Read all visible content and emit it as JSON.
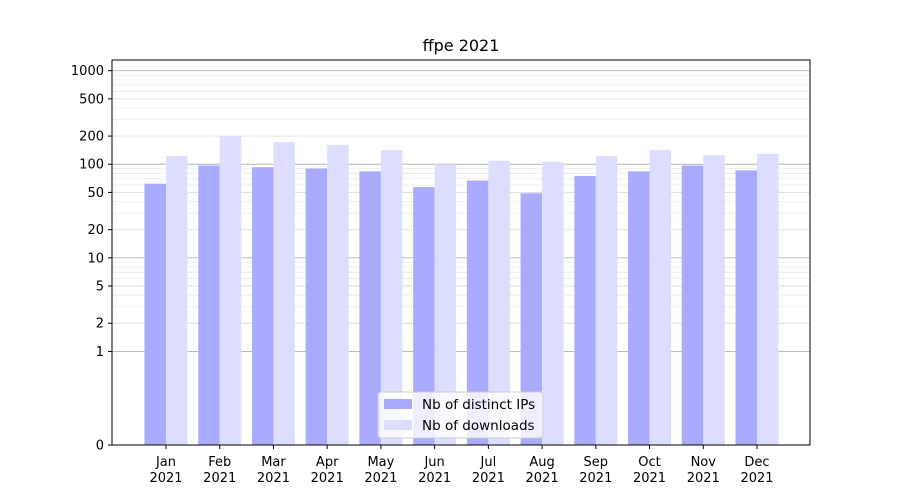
{
  "chart_data": {
    "type": "bar",
    "title": "ffpe 2021",
    "xlabel": "",
    "ylabel": "",
    "y_scale": "symlog",
    "ylim": [
      0,
      1300
    ],
    "y_ticks": [
      0,
      1,
      2,
      5,
      10,
      20,
      50,
      100,
      200,
      500,
      1000
    ],
    "categories": [
      [
        "Jan",
        "2021"
      ],
      [
        "Feb",
        "2021"
      ],
      [
        "Mar",
        "2021"
      ],
      [
        "Apr",
        "2021"
      ],
      [
        "May",
        "2021"
      ],
      [
        "Jun",
        "2021"
      ],
      [
        "Jul",
        "2021"
      ],
      [
        "Aug",
        "2021"
      ],
      [
        "Sep",
        "2021"
      ],
      [
        "Oct",
        "2021"
      ],
      [
        "Nov",
        "2021"
      ],
      [
        "Dec",
        "2021"
      ]
    ],
    "series": [
      {
        "name": "Nb of distinct IPs",
        "color": "#aaaaff",
        "values": [
          62,
          97,
          93,
          90,
          84,
          57,
          67,
          49,
          75,
          84,
          97,
          86
        ]
      },
      {
        "name": "Nb of downloads",
        "color": "#ddddff",
        "values": [
          122,
          199,
          172,
          161,
          142,
          100,
          109,
          106,
          122,
          142,
          125,
          129
        ]
      }
    ],
    "legend_position": "lower-center",
    "grid": true
  }
}
